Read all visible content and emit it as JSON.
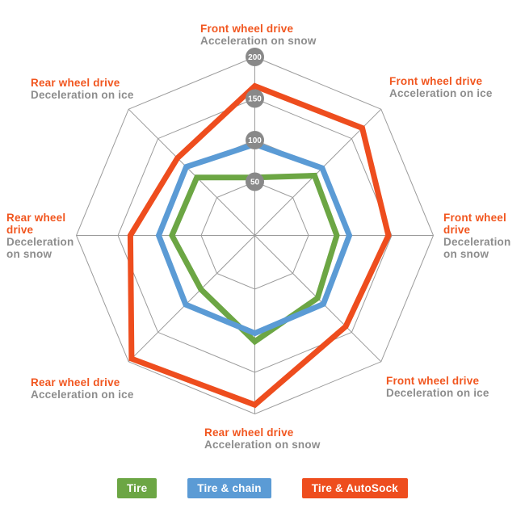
{
  "colors": {
    "tire": "#6CA644",
    "tire_chain": "#5B9BD5",
    "tire_autosock": "#EE4D1E",
    "label_orange": "#F1561F",
    "label_gray": "#8D8D8D",
    "grid": "#9B9B9B",
    "badge_bg": "#898989",
    "badge_text": "#FFFFFF"
  },
  "chart_data": {
    "type": "radar",
    "axes_order": "clockwise-from-top",
    "categories": [
      {
        "drive": "Front wheel drive",
        "condition": "Acceleration on snow"
      },
      {
        "drive": "Front wheel drive",
        "condition": "Acceleration on ice"
      },
      {
        "drive": "Front wheel drive",
        "condition": "Deceleration on snow"
      },
      {
        "drive": "Front wheel drive",
        "condition": "Deceleration on ice"
      },
      {
        "drive": "Rear wheel drive",
        "condition": "Acceleration on snow"
      },
      {
        "drive": "Rear wheel drive",
        "condition": "Acceleration on ice"
      },
      {
        "drive": "Rear wheel drive",
        "condition": "Deceleration on snow"
      },
      {
        "drive": "Rear wheel drive",
        "condition": "Deceleration on ice"
      }
    ],
    "series": [
      {
        "name": "Tire",
        "color": "#6CA644",
        "values": [
          55,
          87,
          84,
          92,
          113,
          77,
          85,
          84
        ]
      },
      {
        "name": "Tire & chain",
        "color": "#5B9BD5",
        "values": [
          95,
          100,
          99,
          102,
          103,
          103,
          101,
          102
        ]
      },
      {
        "name": "Tire & AutoSock",
        "color": "#EE4D1E",
        "values": [
          165,
          168,
          146,
          140,
          189,
          195,
          135,
          117
        ]
      }
    ],
    "radial_ticks": [
      50,
      100,
      150,
      200
    ],
    "rlim": [
      0,
      200
    ],
    "grid": true,
    "legend_position": "bottom"
  },
  "axis_labels": [
    {
      "pos": "top",
      "title_lines": [
        "Front wheel drive"
      ],
      "subtitle_lines": [
        "Acceleration on snow"
      ]
    },
    {
      "pos": "top-right",
      "title_lines": [
        "Front wheel drive"
      ],
      "subtitle_lines": [
        "Acceleration on ice"
      ]
    },
    {
      "pos": "right",
      "title_lines": [
        "Front wheel",
        "drive"
      ],
      "subtitle_lines": [
        "Deceleration",
        "on snow"
      ]
    },
    {
      "pos": "bottom-right",
      "title_lines": [
        "Front wheel drive"
      ],
      "subtitle_lines": [
        "Deceleration on ice"
      ]
    },
    {
      "pos": "bottom",
      "title_lines": [
        "Rear wheel drive"
      ],
      "subtitle_lines": [
        "Acceleration on snow"
      ]
    },
    {
      "pos": "bottom-left",
      "title_lines": [
        "Rear wheel drive"
      ],
      "subtitle_lines": [
        "Acceleration on ice"
      ]
    },
    {
      "pos": "left",
      "title_lines": [
        "Rear wheel",
        "drive"
      ],
      "subtitle_lines": [
        "Deceleration",
        "on snow"
      ]
    },
    {
      "pos": "top-left",
      "title_lines": [
        "Rear wheel drive"
      ],
      "subtitle_lines": [
        "Deceleration on ice"
      ]
    }
  ],
  "legend": {
    "items": [
      {
        "label": "Tire",
        "color": "#6CA644"
      },
      {
        "label": "Tire & chain",
        "color": "#5B9BD5"
      },
      {
        "label": "Tire & AutoSock",
        "color": "#EE4D1E"
      }
    ]
  }
}
